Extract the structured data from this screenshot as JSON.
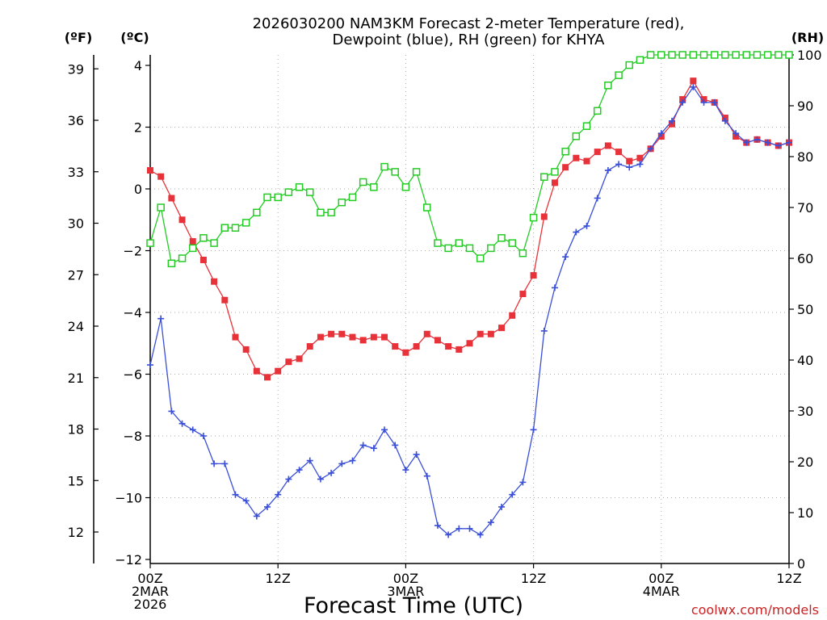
{
  "chart_data": {
    "type": "line",
    "title_line1": "2026030200 NAM3KM Forecast 2-meter Temperature (red),",
    "title_line2": "Dewpoint (blue), RH (green) for KHYA",
    "left_axis_f_label": "(ºF)",
    "left_axis_c_label": "(ºC)",
    "right_axis_label": "(RH)",
    "xlabel": "Forecast Time (UTC)",
    "credit": "coolwx.com/models",
    "x_unit": "forecast hour",
    "xlim": [
      0,
      60
    ],
    "ylim_c": [
      -12,
      4.5
    ],
    "ylim_rh": [
      0,
      100
    ],
    "c_ticks": [
      "4",
      "2",
      "0",
      "−2",
      "−4",
      "−6",
      "−8",
      "−10",
      "−12"
    ],
    "c_tick_values": [
      4,
      2,
      0,
      -2,
      -4,
      -6,
      -8,
      -10,
      -12
    ],
    "f_ticks": [
      "39",
      "36",
      "33",
      "30",
      "27",
      "24",
      "21",
      "18",
      "15",
      "12"
    ],
    "f_tick_values": [
      39,
      36,
      33,
      30,
      27,
      24,
      21,
      18,
      15,
      12
    ],
    "rh_ticks": [
      "100",
      "90",
      "80",
      "70",
      "60",
      "50",
      "40",
      "30",
      "20",
      "10",
      "0"
    ],
    "rh_tick_values": [
      100,
      90,
      80,
      70,
      60,
      50,
      40,
      30,
      20,
      10,
      0
    ],
    "x_ticks": [
      {
        "hour": 0,
        "lines": [
          "00Z",
          "2MAR",
          "2026"
        ]
      },
      {
        "hour": 12,
        "lines": [
          "12Z"
        ]
      },
      {
        "hour": 24,
        "lines": [
          "00Z",
          "3MAR"
        ]
      },
      {
        "hour": 36,
        "lines": [
          "12Z"
        ]
      },
      {
        "hour": 48,
        "lines": [
          "00Z",
          "4MAR"
        ]
      },
      {
        "hour": 60,
        "lines": [
          "12Z"
        ]
      }
    ],
    "series": [
      {
        "name": "2-meter Temperature",
        "unit": "C",
        "color": "#e8323a",
        "marker": "filled-square",
        "values": [
          0.6,
          0.4,
          -0.3,
          -1.0,
          -1.7,
          -2.3,
          -3.0,
          -3.6,
          -4.8,
          -5.2,
          -5.9,
          -6.1,
          -5.9,
          -5.6,
          -5.5,
          -5.1,
          -4.8,
          -4.7,
          -4.7,
          -4.8,
          -4.9,
          -4.8,
          -4.8,
          -5.1,
          -5.3,
          -5.1,
          -4.7,
          -4.9,
          -5.1,
          -5.2,
          -5.0,
          -4.7,
          -4.7,
          -4.5,
          -4.1,
          -3.4,
          -2.8,
          -0.9,
          0.2,
          0.7,
          1.0,
          0.9,
          1.2,
          1.4,
          1.2,
          0.9,
          1.0,
          1.3,
          1.7,
          2.1,
          2.9,
          3.5,
          2.9,
          2.8,
          2.3,
          1.7,
          1.5,
          1.6,
          1.5,
          1.4,
          1.5
        ]
      },
      {
        "name": "Dewpoint",
        "unit": "C",
        "color": "#3a4fd8",
        "marker": "plus",
        "values": [
          -5.7,
          -4.2,
          -7.2,
          -7.6,
          -7.8,
          -8.0,
          -8.9,
          -8.9,
          -9.9,
          -10.1,
          -10.6,
          -10.3,
          -9.9,
          -9.4,
          -9.1,
          -8.8,
          -9.4,
          -9.2,
          -8.9,
          -8.8,
          -8.3,
          -8.4,
          -7.8,
          -8.3,
          -9.1,
          -8.6,
          -9.3,
          -10.9,
          -11.2,
          -11.0,
          -11.0,
          -11.2,
          -10.8,
          -10.3,
          -9.9,
          -9.5,
          -7.8,
          -4.6,
          -3.2,
          -2.2,
          -1.4,
          -1.2,
          -0.3,
          0.6,
          0.8,
          0.7,
          0.8,
          1.3,
          1.8,
          2.2,
          2.8,
          3.3,
          2.8,
          2.8,
          2.2,
          1.8,
          1.5,
          1.6,
          1.5,
          1.4,
          1.5
        ]
      },
      {
        "name": "RH",
        "unit": "%",
        "color": "#22cc22",
        "marker": "open-square",
        "values": [
          63,
          70,
          59,
          60,
          62,
          64,
          63,
          66,
          66,
          67,
          69,
          72,
          72,
          73,
          74,
          73,
          69,
          69,
          71,
          72,
          75,
          74,
          78,
          77,
          74,
          77,
          70,
          63,
          62,
          63,
          62,
          60,
          62,
          64,
          63,
          61,
          68,
          76,
          77,
          81,
          84,
          86,
          89,
          94,
          96,
          98,
          99,
          100,
          100,
          100,
          100,
          100,
          100,
          100,
          100,
          100,
          100,
          100,
          100,
          100,
          100
        ]
      }
    ]
  }
}
